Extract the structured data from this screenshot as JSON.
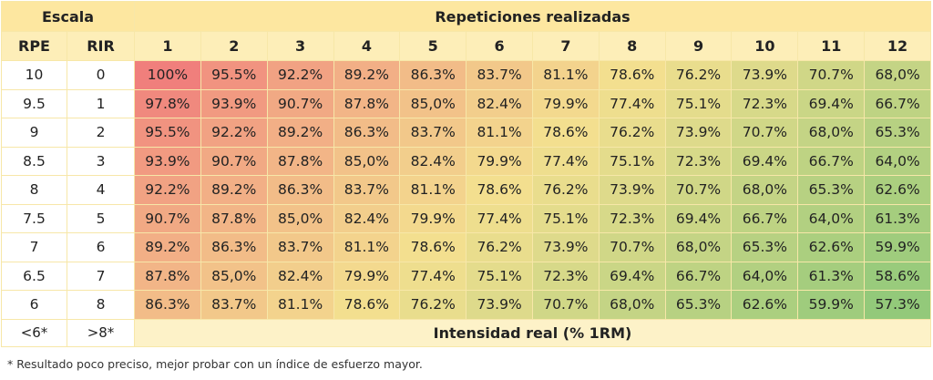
{
  "header": {
    "scale": "Escala",
    "reps": "Repeticiones realizadas",
    "rpe": "RPE",
    "rir": "RIR",
    "rep_numbers": [
      "1",
      "2",
      "3",
      "4",
      "5",
      "6",
      "7",
      "8",
      "9",
      "10",
      "11",
      "12"
    ]
  },
  "rows": [
    {
      "rpe": "10",
      "rir": "0",
      "values": [
        "100%",
        "95.5%",
        "92.2%",
        "89.2%",
        "86.3%",
        "83.7%",
        "81.1%",
        "78.6%",
        "76.2%",
        "73.9%",
        "70.7%",
        "68,0%"
      ]
    },
    {
      "rpe": "9.5",
      "rir": "1",
      "values": [
        "97.8%",
        "93.9%",
        "90.7%",
        "87.8%",
        "85,0%",
        "82.4%",
        "79.9%",
        "77.4%",
        "75.1%",
        "72.3%",
        "69.4%",
        "66.7%"
      ]
    },
    {
      "rpe": "9",
      "rir": "2",
      "values": [
        "95.5%",
        "92.2%",
        "89.2%",
        "86.3%",
        "83.7%",
        "81.1%",
        "78.6%",
        "76.2%",
        "73.9%",
        "70.7%",
        "68,0%",
        "65.3%"
      ]
    },
    {
      "rpe": "8.5",
      "rir": "3",
      "values": [
        "93.9%",
        "90.7%",
        "87.8%",
        "85,0%",
        "82.4%",
        "79.9%",
        "77.4%",
        "75.1%",
        "72.3%",
        "69.4%",
        "66.7%",
        "64,0%"
      ]
    },
    {
      "rpe": "8",
      "rir": "4",
      "values": [
        "92.2%",
        "89.2%",
        "86.3%",
        "83.7%",
        "81.1%",
        "78.6%",
        "76.2%",
        "73.9%",
        "70.7%",
        "68,0%",
        "65.3%",
        "62.6%"
      ]
    },
    {
      "rpe": "7.5",
      "rir": "5",
      "values": [
        "90.7%",
        "87.8%",
        "85,0%",
        "82.4%",
        "79.9%",
        "77.4%",
        "75.1%",
        "72.3%",
        "69.4%",
        "66.7%",
        "64,0%",
        "61.3%"
      ]
    },
    {
      "rpe": "7",
      "rir": "6",
      "values": [
        "89.2%",
        "86.3%",
        "83.7%",
        "81.1%",
        "78.6%",
        "76.2%",
        "73.9%",
        "70.7%",
        "68,0%",
        "65.3%",
        "62.6%",
        "59.9%"
      ]
    },
    {
      "rpe": "6.5",
      "rir": "7",
      "values": [
        "87.8%",
        "85,0%",
        "82.4%",
        "79.9%",
        "77.4%",
        "75.1%",
        "72.3%",
        "69.4%",
        "66.7%",
        "64,0%",
        "61.3%",
        "58.6%"
      ]
    },
    {
      "rpe": "6",
      "rir": "8",
      "values": [
        "86.3%",
        "83.7%",
        "81.1%",
        "78.6%",
        "76.2%",
        "73.9%",
        "70.7%",
        "68,0%",
        "65.3%",
        "62.6%",
        "59.9%",
        "57.3%"
      ]
    }
  ],
  "footer": {
    "rpe": "<6*",
    "rir": ">8*",
    "label": "Intensidad real (% 1RM)"
  },
  "note": "* Resultado poco preciso, mejor probar con un índice de esfuerzo mayor.",
  "colors": {
    "high": "#f07f7c",
    "mid": "#f3df8f",
    "low": "#92c97a"
  }
}
